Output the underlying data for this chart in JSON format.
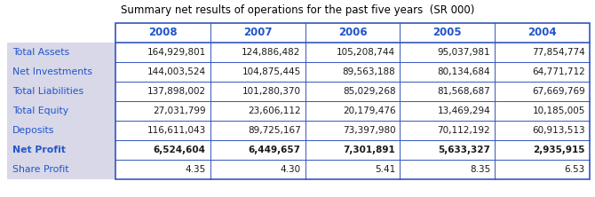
{
  "title": "Summary net results of operations for the past five years  (SR 000)",
  "columns": [
    "2008",
    "2007",
    "2006",
    "2005",
    "2004"
  ],
  "rows": [
    {
      "label": "Total Assets",
      "values": [
        "164,929,801",
        "124,886,482",
        "105,208,744",
        "95,037,981",
        "77,854,774"
      ],
      "bold": false
    },
    {
      "label": "Net Investments",
      "values": [
        "144,003,524",
        "104,875,445",
        "89,563,188",
        "80,134,684",
        "64,771,712"
      ],
      "bold": false
    },
    {
      "label": "Total Liabilities",
      "values": [
        "137,898,002",
        "101,280,370",
        "85,029,268",
        "81,568,687",
        "67,669,769"
      ],
      "bold": false
    },
    {
      "label": "Total Equity",
      "values": [
        "27,031,799",
        "23,606,112",
        "20,179,476",
        "13,469,294",
        "10,185,005"
      ],
      "bold": false
    },
    {
      "label": "Deposits",
      "values": [
        "116,611,043",
        "89,725,167",
        "73,397,980",
        "70,112,192",
        "60,913,513"
      ],
      "bold": false
    },
    {
      "label": "Net Profit",
      "values": [
        "6,524,604",
        "6,449,657",
        "7,301,891",
        "5,633,327",
        "2,935,915"
      ],
      "bold": true
    },
    {
      "label": "Share Profit",
      "values": [
        "4.35",
        "4.30",
        "5.41",
        "8.35",
        "6.53"
      ],
      "bold": false
    }
  ],
  "header_text_color": "#2255cc",
  "label_text_color": "#2255cc",
  "bold_label_color": "#1a1a1a",
  "value_text_color": "#1a1a1a",
  "label_bg_color": "#d8d8e8",
  "header_bg_color": "#ffffff",
  "cell_bg_color": "#ffffff",
  "border_color": "#3355bb",
  "title_color": "#000000",
  "title_fontsize": 8.5,
  "header_fontsize": 8.5,
  "label_fontsize": 7.8,
  "value_fontsize": 7.5
}
